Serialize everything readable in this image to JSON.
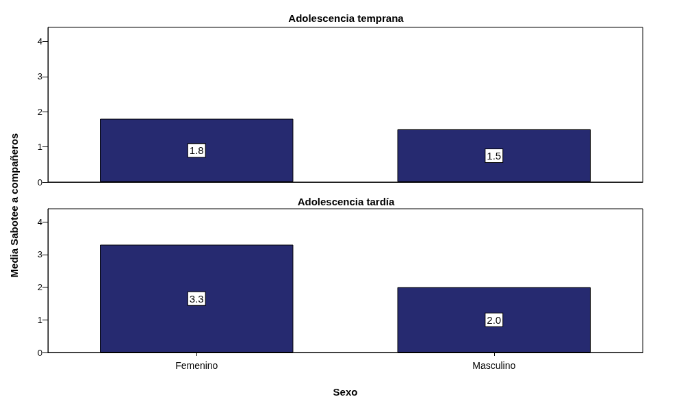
{
  "chart_data": [
    {
      "type": "bar",
      "title": "Adolescencia temprana",
      "ylabel": "Media Sabotee a compañeros",
      "categories": [
        null,
        null
      ],
      "values": [
        1.8,
        1.5
      ],
      "value_labels": [
        "1.8",
        "1.5"
      ],
      "color": "#262a70",
      "ylim": [
        0,
        4.4
      ],
      "yticks": [
        0,
        1,
        2,
        3,
        4
      ],
      "grid": false,
      "tick_labels": "y"
    },
    {
      "type": "bar",
      "title": "Adolescencia tardía",
      "xlabel": "Sexo",
      "categories": [
        "Femenino",
        "Masculino"
      ],
      "values": [
        3.3,
        2.0
      ],
      "value_labels": [
        "3.3",
        "2.0"
      ],
      "color": "#262a70",
      "ylim": [
        0,
        4.4
      ],
      "yticks": [
        0,
        1,
        2,
        3,
        4
      ],
      "grid": false
    }
  ]
}
